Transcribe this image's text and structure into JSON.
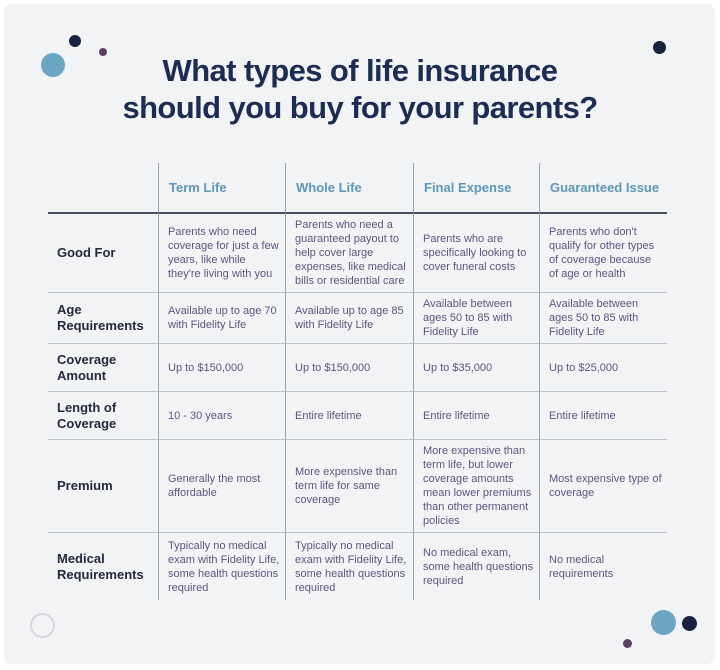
{
  "header": {
    "title_line1": "What types of life insurance",
    "title_line2": "should you buy for your parents?"
  },
  "chart_data": {
    "type": "table",
    "title": "What types of life insurance should you buy for your parents?",
    "columns": [
      "Term Life",
      "Whole Life",
      "Final Expense",
      "Guaranteed Issue"
    ],
    "rows": [
      {
        "label": "Good For",
        "cells": [
          "Parents who need coverage for just a few years, like while they're living with you",
          "Parents who need a guaranteed payout to help cover large expenses, like medical bills or residential care",
          "Parents who are specifically looking to cover funeral costs",
          "Parents who don't qualify for other types of coverage because of age or health"
        ]
      },
      {
        "label": "Age Requirements",
        "cells": [
          "Available up to age 70 with Fidelity Life",
          "Available up to age 85 with Fidelity Life",
          "Available between ages 50 to 85 with Fidelity Life",
          "Available between ages 50 to 85 with Fidelity Life"
        ]
      },
      {
        "label": "Coverage Amount",
        "cells": [
          "Up to $150,000",
          "Up to $150,000",
          "Up to $35,000",
          "Up to $25,000"
        ]
      },
      {
        "label": "Length of Coverage",
        "cells": [
          "10 - 30 years",
          "Entire lifetime",
          "Entire lifetime",
          "Entire lifetime"
        ]
      },
      {
        "label": "Premium",
        "cells": [
          "Generally the most affordable",
          "More expensive than term life for same coverage",
          "More expensive than term life, but lower coverage amounts mean lower premiums than other permanent policies",
          "Most expensive type of coverage"
        ]
      },
      {
        "label": "Medical Requirements",
        "cells": [
          "Typically no medical exam with Fidelity Life, some health questions required",
          "Typically no medical exam with Fidelity Life, some health questions required",
          "No medical exam, some health questions required",
          "No medical requirements"
        ]
      }
    ],
    "layout": {
      "grid": "on",
      "header_row": true,
      "legend": "none"
    }
  },
  "colors": {
    "background": "#f2f3f5",
    "title_navy": "#1d2c52",
    "column_header_blue": "#5e97b7",
    "row_label_navy": "#27273f",
    "cell_text_purple": "#5d5680",
    "vertical_line": "#9aa1ad",
    "row_divider": "#bfc2ca",
    "header_underline": "#4c4d61",
    "decor_blue": "#6ba6c3",
    "decor_navy": "#18243f",
    "decor_plum": "#5e3f64",
    "decor_ring": "#d7d8dc"
  },
  "decorations": [
    "dot-cluster-top-left",
    "dot-top-right",
    "ring-bottom-left",
    "dot-cluster-bottom-right"
  ]
}
